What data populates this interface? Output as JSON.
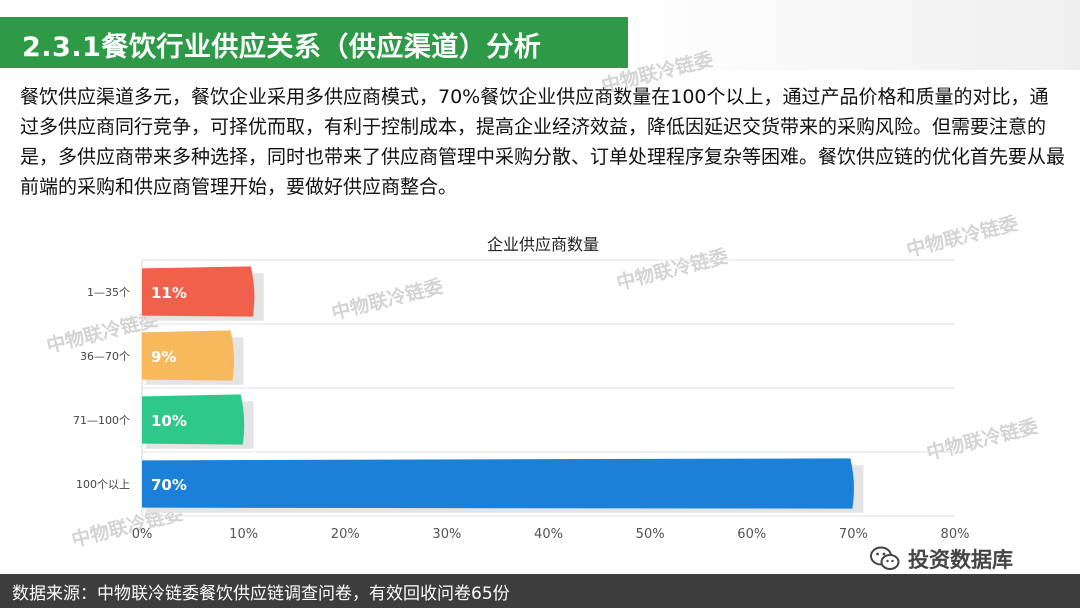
{
  "header": {
    "title": "2.3.1餐饮行业供应关系（供应渠道）分析"
  },
  "body_text": "餐饮供应渠道多元，餐饮企业采用多供应商模式，70%餐饮企业供应商数量在100个以上，通过产品价格和质量的对比，通过多供应商同行竞争，可择优而取，有利于控制成本，提高企业经济效益，降低因延迟交货带来的采购风险。但需要注意的是，多供应商带来多种选择，同时也带来了供应商管理中采购分散、订单处理程序复杂等困难。餐饮供应链的优化首先要从最前端的采购和供应商管理开始，要做好供应商整合。",
  "watermark_text": "中物联冷链委",
  "footer": {
    "source": "数据来源：中物联冷链委餐饮供应链调查问卷，有效回收问卷65份"
  },
  "brand": {
    "name": "投资数据库",
    "icon": "wechat-icon",
    "color": "#444444"
  },
  "chart_data": {
    "type": "bar",
    "orientation": "horizontal",
    "title": "企业供应商数量",
    "categories": [
      "1—35个",
      "36—70个",
      "71—100个",
      "100个以上"
    ],
    "values": [
      11,
      9,
      10,
      70
    ],
    "labels": [
      "11%",
      "9%",
      "10%",
      "70%"
    ],
    "colors": [
      "#f0604a",
      "#f7b95b",
      "#2ec98a",
      "#1a80d8"
    ],
    "xlim": [
      0,
      80
    ],
    "xticks": [
      "0%",
      "10%",
      "20%",
      "30%",
      "40%",
      "50%",
      "60%",
      "70%",
      "80%"
    ],
    "xlabel": "",
    "ylabel": "",
    "grid": true
  }
}
